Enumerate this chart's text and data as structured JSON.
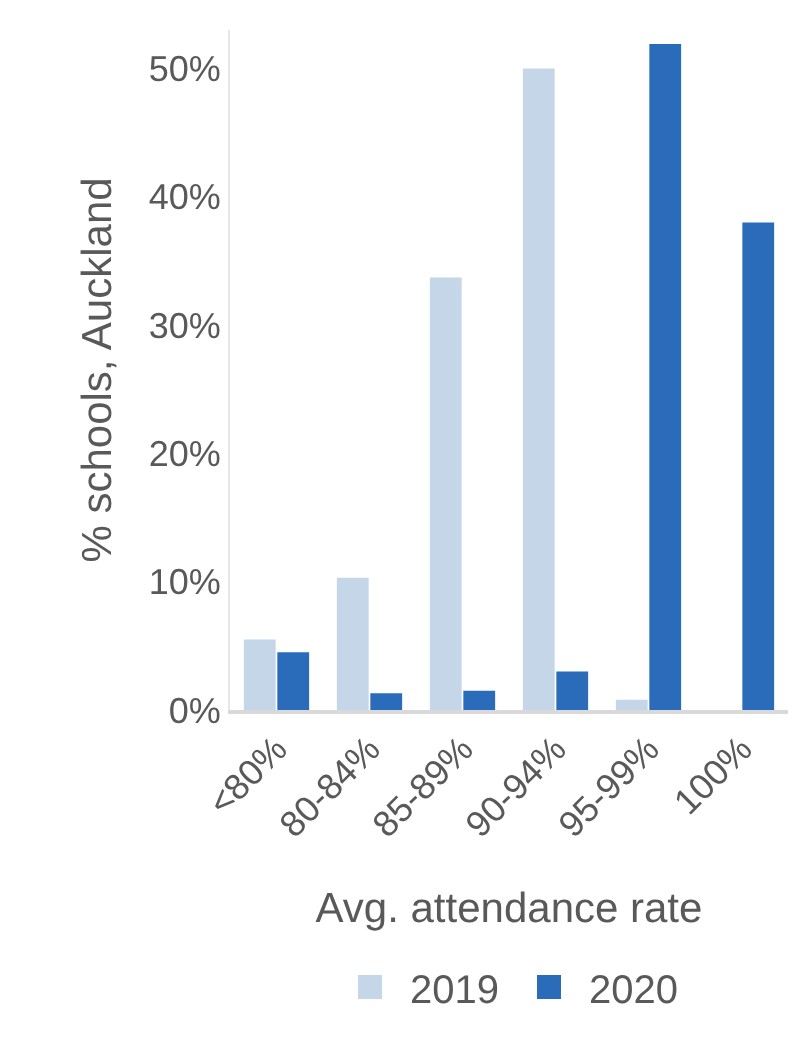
{
  "chart_data": {
    "type": "bar",
    "xlabel": "Avg. attendance rate",
    "ylabel": "% schools, Auckland",
    "categories": [
      "<80%",
      "80-84%",
      "85-89%",
      "90-94%",
      "95-99%",
      "100%"
    ],
    "series": [
      {
        "name": "2019",
        "color": "#c5d6e8",
        "values": [
          5.5,
          10.3,
          33.7,
          50,
          0.8,
          0
        ]
      },
      {
        "name": "2020",
        "color": "#2a6cba",
        "values": [
          4.5,
          1.3,
          1.5,
          3,
          51.9,
          38
        ]
      }
    ],
    "ylim": [
      0,
      53
    ],
    "yticks": [
      {
        "value": 0,
        "label": "0%"
      },
      {
        "value": 10,
        "label": "10%"
      },
      {
        "value": 20,
        "label": "20%"
      },
      {
        "value": 30,
        "label": "30%"
      },
      {
        "value": 40,
        "label": "40%"
      },
      {
        "value": 50,
        "label": "50%"
      }
    ],
    "grid": false,
    "legend": "bottom"
  }
}
